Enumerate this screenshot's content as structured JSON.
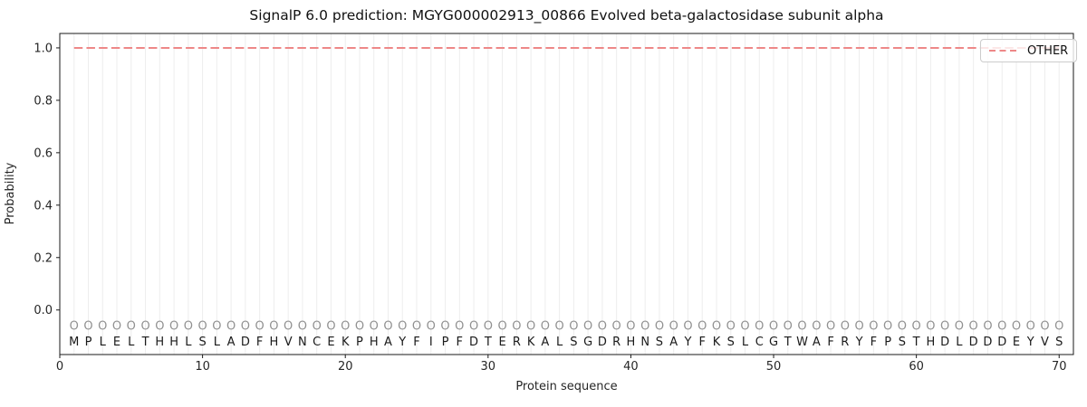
{
  "figure": {
    "title": "SignalP 6.0 prediction: MGYG000002913_00866 Evolved beta-galactosidase subunit alpha",
    "xlabel": "Protein sequence",
    "ylabel": "Probability",
    "legend": {
      "position": "upper right",
      "entries": [
        {
          "label": "OTHER",
          "color": "#ee8888",
          "style": "dashed"
        }
      ]
    }
  },
  "chart_data": {
    "type": "line",
    "title": "SignalP 6.0 prediction: MGYG000002913_00866 Evolved beta-galactosidase subunit alpha",
    "xlabel": "Protein sequence",
    "ylabel": "Probability",
    "xlim": [
      0,
      71
    ],
    "ylim": [
      -0.17,
      1.055
    ],
    "xticks": [
      0,
      10,
      20,
      30,
      40,
      50,
      60,
      70
    ],
    "yticks": [
      0.0,
      0.2,
      0.4,
      0.6,
      0.8,
      1.0
    ],
    "grid": "vertical gridline at every residue position",
    "legend_position": "upper right",
    "series": [
      {
        "name": "OTHER",
        "color": "#ee8888",
        "line_style": "dashed",
        "x": [
          1,
          2,
          3,
          4,
          5,
          6,
          7,
          8,
          9,
          10,
          11,
          12,
          13,
          14,
          15,
          16,
          17,
          18,
          19,
          20,
          21,
          22,
          23,
          24,
          25,
          26,
          27,
          28,
          29,
          30,
          31,
          32,
          33,
          34,
          35,
          36,
          37,
          38,
          39,
          40,
          41,
          42,
          43,
          44,
          45,
          46,
          47,
          48,
          49,
          50,
          51,
          52,
          53,
          54,
          55,
          56,
          57,
          58,
          59,
          60,
          61,
          62,
          63,
          64,
          65,
          66,
          67,
          68,
          69,
          70
        ],
        "values": [
          1.0,
          1.0,
          1.0,
          1.0,
          1.0,
          1.0,
          1.0,
          1.0,
          1.0,
          1.0,
          1.0,
          1.0,
          1.0,
          1.0,
          1.0,
          1.0,
          1.0,
          1.0,
          1.0,
          1.0,
          1.0,
          1.0,
          1.0,
          1.0,
          1.0,
          1.0,
          1.0,
          1.0,
          1.0,
          1.0,
          1.0,
          1.0,
          1.0,
          1.0,
          1.0,
          1.0,
          1.0,
          1.0,
          1.0,
          1.0,
          1.0,
          1.0,
          1.0,
          1.0,
          1.0,
          1.0,
          1.0,
          1.0,
          1.0,
          1.0,
          1.0,
          1.0,
          1.0,
          1.0,
          1.0,
          1.0,
          1.0,
          1.0,
          1.0,
          1.0,
          1.0,
          1.0,
          1.0,
          1.0,
          1.0,
          1.0,
          1.0,
          1.0,
          1.0,
          1.0
        ]
      }
    ],
    "sequence": "MPLELTHHLSLADFHVNCEKPHAYFIPFDTERKALSGDRHNSAYFKSLCGTWAFRYFPSTHDLDDDEYVS",
    "sequence_y": -0.12,
    "position_marks": {
      "char": "O",
      "color": "#919191",
      "y": -0.06
    }
  }
}
